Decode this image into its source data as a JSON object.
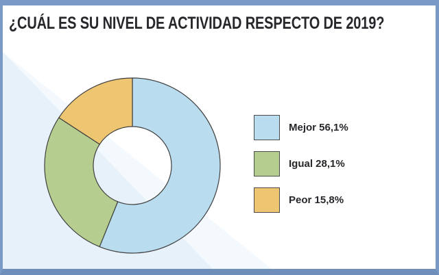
{
  "title": "¿CUÁL ES SU NIVEL DE ACTIVIDAD RESPECTO DE 2019?",
  "colors": {
    "frame_border": "#7b99c5",
    "frame_border_bottom": "#6f8eba",
    "background_accent": "#e7f1f9",
    "slice_stroke": "#3f3f3f",
    "hole_fill": "#ffffff",
    "text": "#26262b"
  },
  "chart_data": {
    "type": "pie",
    "subtype": "donut",
    "title": "¿CUÁL ES SU NIVEL DE ACTIVIDAD RESPECTO DE 2019?",
    "categories": [
      "Mejor",
      "Igual",
      "Peor"
    ],
    "values": [
      56.1,
      28.1,
      15.8
    ],
    "value_labels": [
      "56,1%",
      "28,1%",
      "15,8%"
    ],
    "colors": [
      "#b9dcee",
      "#b5cd8e",
      "#eec571"
    ],
    "start_angle_deg_from_top": 0,
    "direction": "clockwise",
    "outer_radius": 128,
    "inner_radius": 57,
    "legend_position": "right",
    "legend_labels": [
      "Mejor 56,1%",
      "Igual 28,1%",
      "Peor 15,8%"
    ]
  },
  "legend": {
    "items": [
      {
        "label": "Mejor 56,1%",
        "color": "#b9dcee"
      },
      {
        "label": "Igual 28,1%",
        "color": "#b5cd8e"
      },
      {
        "label": "Peor 15,8%",
        "color": "#eec571"
      }
    ]
  }
}
